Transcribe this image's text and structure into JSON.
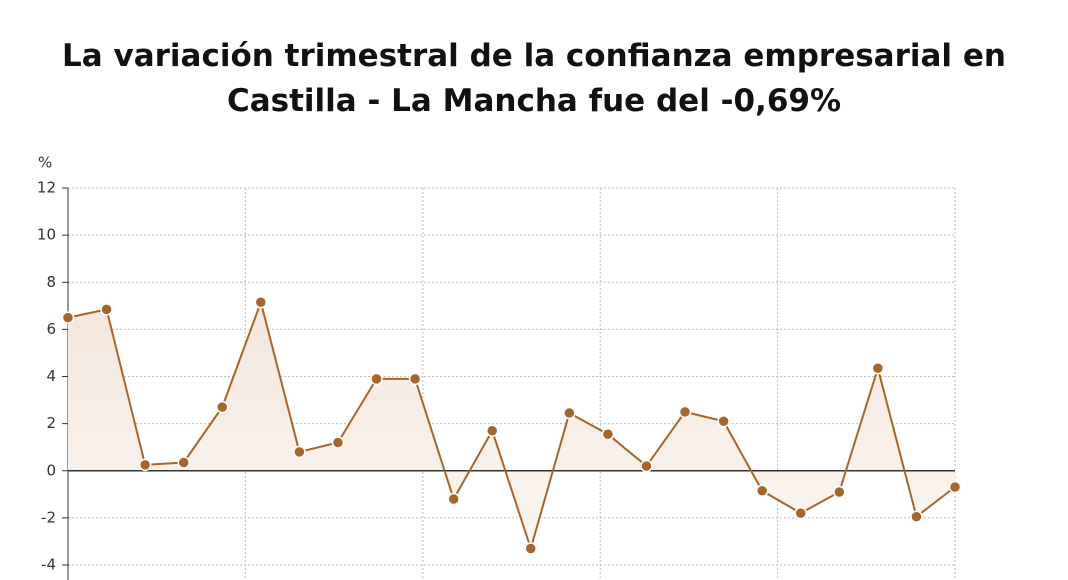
{
  "chart_data": {
    "type": "line",
    "title": "La variación trimestral de la confianza empresarial en Castilla - La Mancha fue del -0,69%",
    "y_label": "%",
    "categories": [
      null,
      null,
      null,
      null,
      null,
      null,
      null,
      null,
      null,
      null,
      null,
      null,
      null,
      null,
      null,
      null,
      null,
      null,
      null,
      null,
      null,
      null,
      null,
      null
    ],
    "series": [
      {
        "color": "#a8652a",
        "values": [
          6.5,
          6.85,
          0.25,
          0.35,
          2.7,
          7.15,
          0.8,
          1.2,
          3.9,
          3.9,
          -1.2,
          1.7,
          -3.3,
          2.45,
          1.55,
          0.2,
          2.5,
          2.1,
          -0.85,
          -1.8,
          -0.9,
          4.35,
          -1.95,
          -0.69
        ]
      }
    ],
    "ylim": [
      -4,
      12
    ],
    "yticks": [
      -4,
      -2,
      0,
      2,
      4,
      6,
      8,
      10,
      12
    ],
    "grid": true
  }
}
